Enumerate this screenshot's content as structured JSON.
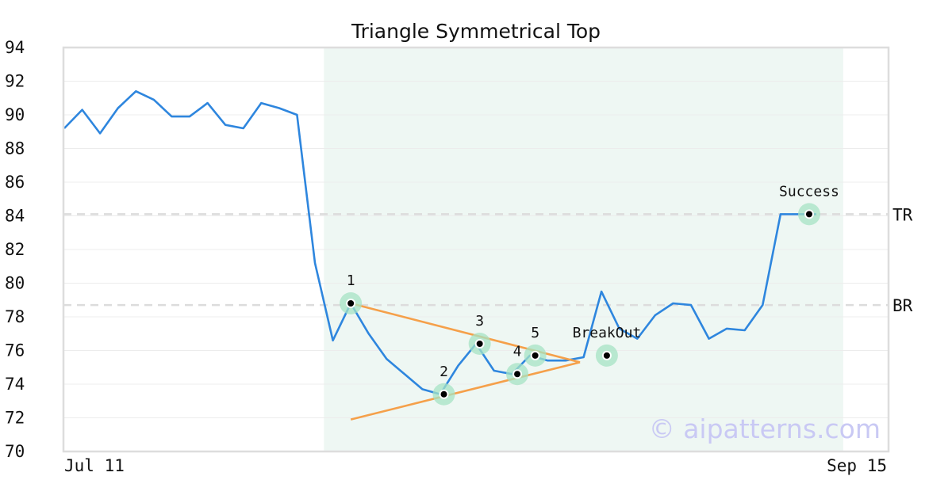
{
  "chart_data": {
    "type": "line",
    "title": "Triangle Symmetrical Top",
    "xlabel": "",
    "ylabel": "",
    "ylim": [
      70,
      94
    ],
    "y_ticks": [
      "70",
      "72",
      "74",
      "76",
      "78",
      "80",
      "82",
      "84",
      "86",
      "88",
      "90",
      "92",
      "94"
    ],
    "x_tick_labels": [
      "Jul 11",
      "Sep 15"
    ],
    "grid": true,
    "series": [
      {
        "color": "#2e86de",
        "values": [
          89.2,
          90.3,
          88.9,
          90.4,
          91.4,
          90.9,
          89.9,
          89.9,
          90.7,
          89.4,
          89.2,
          90.7,
          90.4,
          90.0,
          81.2,
          76.6,
          78.8,
          77.0,
          75.5,
          74.6,
          73.7,
          73.4,
          75.1,
          76.4,
          74.8,
          74.6,
          75.7,
          75.4,
          75.4,
          75.6,
          79.5,
          77.3,
          76.7,
          78.1,
          78.8,
          78.7,
          76.7,
          77.3,
          77.2,
          78.7,
          84.1,
          84.1,
          84.1
        ]
      }
    ],
    "highlight_region": {
      "start_index": 14.5,
      "end_index": 43.5,
      "color": "#eef7f3"
    },
    "trend_lines": [
      {
        "color": "#f5a04a",
        "from": {
          "index": 16,
          "value": 78.8
        },
        "to": {
          "index": 28.8,
          "value": 75.3
        }
      },
      {
        "color": "#f5a04a",
        "from": {
          "index": 16,
          "value": 71.9
        },
        "to": {
          "index": 28.8,
          "value": 75.3
        }
      }
    ],
    "points": [
      {
        "label": "1",
        "index": 16,
        "value": 78.8
      },
      {
        "label": "2",
        "index": 21.2,
        "value": 73.4
      },
      {
        "label": "3",
        "index": 23.2,
        "value": 76.4
      },
      {
        "label": "4",
        "index": 25.3,
        "value": 74.6
      },
      {
        "label": "5",
        "index": 26.3,
        "value": 75.7
      },
      {
        "label": "BreakOut",
        "index": 30.3,
        "value": 75.7
      },
      {
        "label": "Success",
        "index": 41.6,
        "value": 84.1
      }
    ],
    "levels": [
      {
        "label": "TR",
        "value": 84.1
      },
      {
        "label": "BR",
        "value": 78.7
      }
    ],
    "watermark": "© aipatterns.com"
  }
}
